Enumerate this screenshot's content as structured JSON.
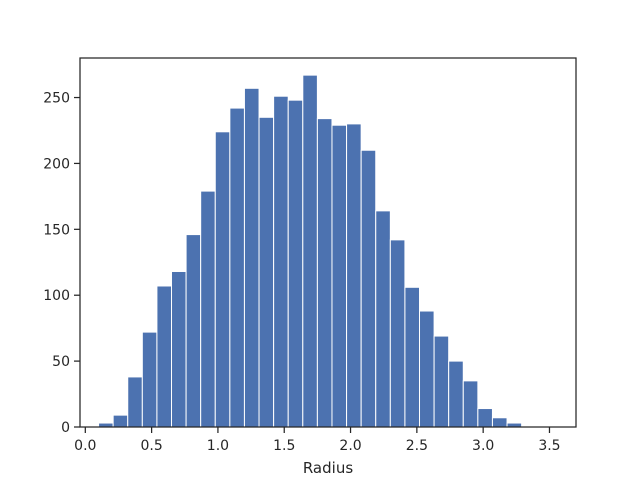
{
  "chart_data": {
    "type": "bar",
    "subtype": "histogram",
    "title": "",
    "xlabel": "Radius",
    "ylabel": "",
    "xlim": [
      -0.04,
      3.7
    ],
    "ylim": [
      0,
      280
    ],
    "xticks": [
      0.0,
      0.5,
      1.0,
      1.5,
      2.0,
      2.5,
      3.0,
      3.5
    ],
    "xtick_labels": [
      "0.0",
      "0.5",
      "1.0",
      "1.5",
      "2.0",
      "2.5",
      "3.0",
      "3.5"
    ],
    "yticks": [
      0,
      50,
      100,
      150,
      200,
      250
    ],
    "ytick_labels": [
      "0",
      "50",
      "100",
      "150",
      "200",
      "250"
    ],
    "grid": false,
    "bar_color": "#4c72b0",
    "bin_edges": [
      0.1,
      0.21,
      0.32,
      0.43,
      0.54,
      0.65,
      0.76,
      0.87,
      0.98,
      1.09,
      1.2,
      1.31,
      1.42,
      1.53,
      1.64,
      1.75,
      1.86,
      1.97,
      2.08,
      2.19,
      2.3,
      2.41,
      2.52,
      2.63,
      2.74,
      2.85,
      2.96,
      3.07,
      3.18,
      3.29,
      3.4,
      3.51
    ],
    "values": [
      3,
      9,
      38,
      72,
      107,
      118,
      146,
      179,
      224,
      242,
      257,
      235,
      251,
      248,
      267,
      234,
      229,
      230,
      210,
      164,
      142,
      106,
      88,
      69,
      50,
      35,
      14,
      7,
      3,
      0,
      0
    ]
  }
}
